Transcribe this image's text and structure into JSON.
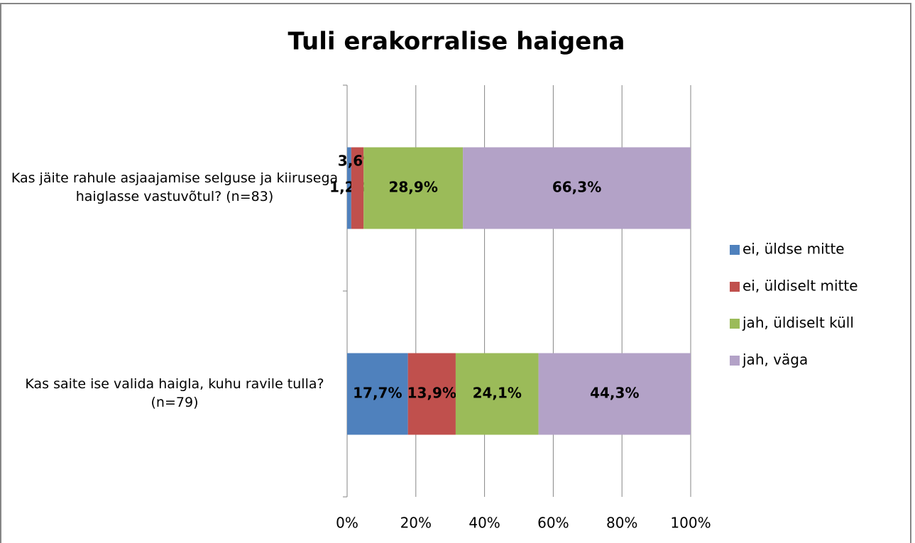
{
  "chart_data": {
    "type": "bar",
    "orientation": "horizontal",
    "stacked": true,
    "title": "Tuli erakorralise haigena",
    "categories": [
      "Kas jäite rahule asjaajamise selguse ja kiirusega haiglasse vastuvõtul? (n=83)",
      "Kas saite ise valida haigla, kuhu ravile tulla? (n=79)"
    ],
    "series": [
      {
        "name": "ei, üldse mitte",
        "color": "#4f81bd",
        "values": [
          1.2,
          17.7
        ],
        "value_labels": [
          "1,2%",
          "17,7%"
        ]
      },
      {
        "name": "ei, üldiselt mitte",
        "color": "#c0504d",
        "values": [
          3.6,
          13.9
        ],
        "value_labels": [
          "3,6%",
          "13,9%"
        ]
      },
      {
        "name": "jah, üldiselt küll",
        "color": "#9bbb59",
        "values": [
          28.9,
          24.1
        ],
        "value_labels": [
          "28,9%",
          "24,1%"
        ]
      },
      {
        "name": "jah, väga",
        "color": "#b3a2c7",
        "values": [
          66.3,
          44.3
        ],
        "value_labels": [
          "66,3%",
          "44,3%"
        ]
      }
    ],
    "xlim": [
      0,
      100
    ],
    "xticks": [
      {
        "value": 0,
        "label": "0%"
      },
      {
        "value": 20,
        "label": "20%"
      },
      {
        "value": 40,
        "label": "40%"
      },
      {
        "value": 60,
        "label": "60%"
      },
      {
        "value": 80,
        "label": "80%"
      },
      {
        "value": 100,
        "label": "100%"
      }
    ],
    "grid": true,
    "legend": "right"
  }
}
